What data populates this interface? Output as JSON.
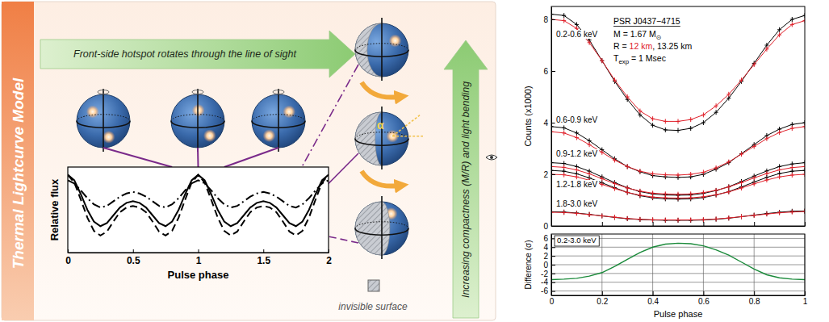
{
  "diagram": {
    "side_title": "Thermal Lightcurve Model",
    "top_arrow": "Front-side hotspot rotates through the line of sight",
    "side_arrow": "Increasing compactness (M/R) and light bending",
    "angle_label": "α",
    "hatch_legend": "invisible surface"
  },
  "chart_data": [
    {
      "type": "line",
      "x": [
        0,
        0.05,
        0.1,
        0.15,
        0.2,
        0.25,
        0.3,
        0.35,
        0.4,
        0.45,
        0.5,
        0.55,
        0.6,
        0.65,
        0.7,
        0.75,
        0.8,
        0.85,
        0.9,
        0.95,
        1,
        1.05,
        1.1,
        1.15,
        1.2,
        1.25,
        1.3,
        1.35,
        1.4,
        1.45,
        1.5,
        1.55,
        1.6,
        1.65,
        1.7,
        1.75,
        1.8,
        1.85,
        1.9,
        1.95,
        2
      ],
      "xlim": [
        0,
        2
      ],
      "xticks": [
        0,
        0.5,
        1,
        1.5,
        2
      ],
      "ylim": [
        0,
        1.1
      ],
      "yticks": [],
      "x_label": "Pulse phase",
      "y_label": "Relative flux",
      "tick_labels": "x",
      "series": [
        {
          "color": "#000000",
          "line_style": "dashdot",
          "values": [
            0.93,
            0.89,
            0.8,
            0.7,
            0.62,
            0.58,
            0.6,
            0.66,
            0.72,
            0.76,
            0.78,
            0.76,
            0.72,
            0.66,
            0.6,
            0.58,
            0.62,
            0.7,
            0.8,
            0.89,
            0.93,
            0.89,
            0.8,
            0.7,
            0.62,
            0.58,
            0.6,
            0.66,
            0.72,
            0.76,
            0.78,
            0.76,
            0.72,
            0.66,
            0.6,
            0.58,
            0.62,
            0.7,
            0.8,
            0.89,
            0.93
          ]
        },
        {
          "color": "#000000",
          "line_style": "solid",
          "values": [
            1.0,
            0.93,
            0.75,
            0.55,
            0.4,
            0.34,
            0.38,
            0.48,
            0.58,
            0.64,
            0.66,
            0.64,
            0.58,
            0.48,
            0.38,
            0.34,
            0.4,
            0.55,
            0.75,
            0.93,
            1.0,
            0.93,
            0.75,
            0.55,
            0.4,
            0.34,
            0.38,
            0.48,
            0.58,
            0.64,
            0.66,
            0.64,
            0.58,
            0.48,
            0.38,
            0.34,
            0.4,
            0.55,
            0.75,
            0.93,
            1.0
          ]
        },
        {
          "color": "#000000",
          "line_style": "dashed",
          "values": [
            1.0,
            0.9,
            0.68,
            0.45,
            0.28,
            0.22,
            0.27,
            0.4,
            0.52,
            0.58,
            0.6,
            0.58,
            0.52,
            0.4,
            0.27,
            0.22,
            0.28,
            0.45,
            0.68,
            0.9,
            1.0,
            0.9,
            0.68,
            0.45,
            0.28,
            0.22,
            0.27,
            0.4,
            0.52,
            0.58,
            0.6,
            0.58,
            0.52,
            0.4,
            0.27,
            0.22,
            0.28,
            0.45,
            0.68,
            0.9,
            1.0
          ]
        }
      ]
    },
    {
      "type": "line",
      "x": [
        0,
        0.05,
        0.1,
        0.15,
        0.2,
        0.25,
        0.3,
        0.35,
        0.4,
        0.45,
        0.5,
        0.55,
        0.6,
        0.65,
        0.7,
        0.75,
        0.8,
        0.85,
        0.9,
        0.95,
        1
      ],
      "xlim": [
        0,
        1
      ],
      "xticks": [
        0,
        0.2,
        0.4,
        0.6,
        0.8,
        1
      ],
      "ylim": [
        0,
        8.5
      ],
      "yticks": [
        0,
        2,
        4,
        6,
        8
      ],
      "y_label": "Counts (x1000)",
      "tick_labels": "y",
      "marker": "plus",
      "annotations": [
        {
          "parts": [
            {
              "text": "PSR J0437−4715"
            }
          ]
        },
        {
          "parts": [
            {
              "text": "M = 1.67 M"
            },
            {
              "text": "⊙",
              "subscript": true
            }
          ]
        },
        {
          "parts": [
            {
              "text": "R = "
            },
            {
              "text": "12 km",
              "color": "#e0202a"
            },
            {
              "text": ", 13.25 km"
            }
          ]
        },
        {
          "parts": [
            {
              "text": "T"
            },
            {
              "text": "exp",
              "subscript": true
            },
            {
              "text": " = 1 Msec"
            }
          ]
        }
      ],
      "series": [
        {
          "name": "0.2-0.6 keV",
          "color": "#000000",
          "values": [
            8.2,
            8.15,
            7.8,
            7.2,
            6.4,
            5.6,
            4.9,
            4.3,
            3.9,
            3.72,
            3.7,
            3.78,
            4.0,
            4.4,
            4.95,
            5.6,
            6.3,
            7.0,
            7.6,
            8.0,
            8.15
          ]
        },
        {
          "color": "#e0202a",
          "values": [
            8.0,
            7.95,
            7.65,
            7.1,
            6.4,
            5.65,
            5.0,
            4.45,
            4.15,
            4.05,
            4.05,
            4.12,
            4.3,
            4.65,
            5.1,
            5.65,
            6.25,
            6.85,
            7.4,
            7.8,
            7.95
          ]
        },
        {
          "name": "0.6-0.9 keV",
          "color": "#000000",
          "values": [
            3.85,
            3.8,
            3.6,
            3.3,
            2.95,
            2.6,
            2.3,
            2.1,
            1.95,
            1.9,
            1.88,
            1.9,
            2.0,
            2.2,
            2.45,
            2.8,
            3.15,
            3.5,
            3.75,
            3.93,
            4.0
          ]
        },
        {
          "color": "#e0202a",
          "values": [
            3.65,
            3.6,
            3.42,
            3.15,
            2.85,
            2.55,
            2.3,
            2.12,
            2.02,
            1.98,
            1.97,
            2.0,
            2.08,
            2.25,
            2.48,
            2.78,
            3.08,
            3.38,
            3.62,
            3.78,
            3.85
          ]
        },
        {
          "name": "0.9-1.2 keV",
          "color": "#000000",
          "values": [
            2.45,
            2.42,
            2.3,
            2.12,
            1.9,
            1.68,
            1.48,
            1.33,
            1.24,
            1.2,
            1.19,
            1.2,
            1.26,
            1.37,
            1.52,
            1.72,
            1.93,
            2.13,
            2.3,
            2.4,
            2.45
          ]
        },
        {
          "color": "#e0202a",
          "values": [
            2.3,
            2.27,
            2.17,
            2.02,
            1.83,
            1.64,
            1.47,
            1.35,
            1.27,
            1.24,
            1.23,
            1.24,
            1.29,
            1.38,
            1.51,
            1.68,
            1.86,
            2.03,
            2.17,
            2.26,
            2.3
          ]
        },
        {
          "name": "1.2-1.8 keV",
          "color": "#000000",
          "values": [
            2.15,
            2.12,
            2.02,
            1.86,
            1.67,
            1.48,
            1.3,
            1.17,
            1.09,
            1.05,
            1.04,
            1.05,
            1.1,
            1.2,
            1.33,
            1.51,
            1.7,
            1.88,
            2.03,
            2.12,
            2.15
          ]
        },
        {
          "color": "#e0202a",
          "values": [
            2.0,
            1.98,
            1.9,
            1.77,
            1.61,
            1.45,
            1.3,
            1.19,
            1.12,
            1.09,
            1.08,
            1.09,
            1.13,
            1.21,
            1.32,
            1.47,
            1.63,
            1.78,
            1.9,
            1.97,
            2.0
          ]
        },
        {
          "name": "1.8-3.0 keV",
          "color": "#000000",
          "values": [
            0.55,
            0.54,
            0.5,
            0.45,
            0.39,
            0.33,
            0.28,
            0.25,
            0.23,
            0.22,
            0.22,
            0.22,
            0.23,
            0.26,
            0.3,
            0.36,
            0.42,
            0.48,
            0.53,
            0.57,
            0.58
          ]
        },
        {
          "color": "#e0202a",
          "values": [
            0.53,
            0.52,
            0.49,
            0.44,
            0.39,
            0.34,
            0.29,
            0.26,
            0.24,
            0.235,
            0.23,
            0.235,
            0.245,
            0.27,
            0.31,
            0.36,
            0.41,
            0.46,
            0.51,
            0.54,
            0.56
          ]
        }
      ]
    },
    {
      "type": "line",
      "x": [
        0,
        0.05,
        0.1,
        0.15,
        0.2,
        0.25,
        0.3,
        0.35,
        0.4,
        0.45,
        0.5,
        0.55,
        0.6,
        0.65,
        0.7,
        0.75,
        0.8,
        0.85,
        0.9,
        0.95,
        1
      ],
      "xlim": [
        0,
        1
      ],
      "xticks": [
        0,
        0.2,
        0.4,
        0.6,
        0.8,
        1
      ],
      "ylim": [
        -7,
        7
      ],
      "yticks": [
        -6,
        -4,
        -2,
        0,
        2,
        4,
        6
      ],
      "x_label": "Pulse phase",
      "y_label": "Difference (σ)",
      "grid": true,
      "annotations": [
        {
          "parts": [
            {
              "text": "0.2-3.0 keV"
            }
          ]
        }
      ],
      "series": [
        {
          "color": "#1a8a3a",
          "values": [
            -3.4,
            -3.3,
            -3.1,
            -2.6,
            -1.8,
            -0.4,
            1.2,
            2.8,
            4.0,
            4.7,
            4.9,
            4.8,
            4.3,
            3.4,
            2.2,
            0.6,
            -1.0,
            -2.3,
            -3.0,
            -3.3,
            -3.4
          ]
        }
      ]
    }
  ]
}
